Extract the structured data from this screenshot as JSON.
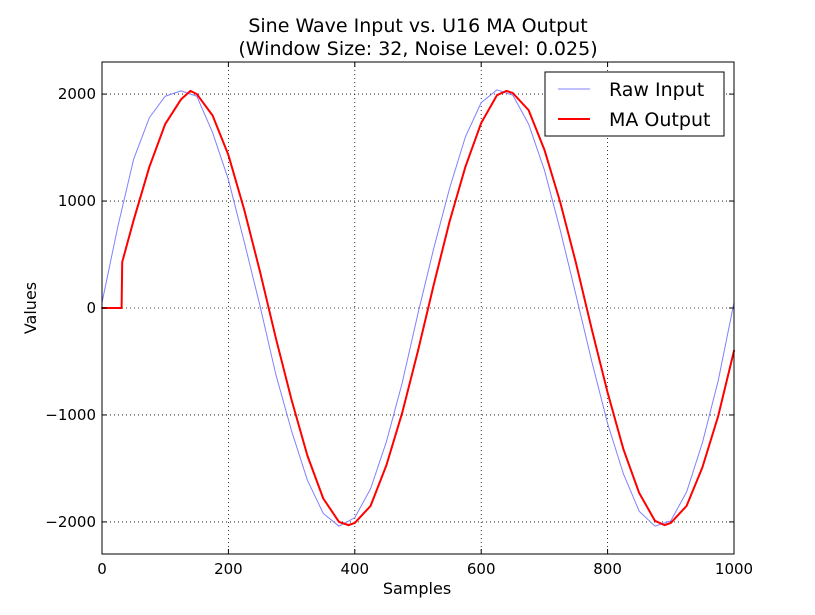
{
  "chart_data": {
    "type": "line",
    "title": "Sine Wave Input vs. U16 MA Output",
    "subtitle": "(Window Size: 32, Noise Level: 0.025)",
    "xlabel": "Samples",
    "ylabel": "Values",
    "xlim": [
      0,
      1000
    ],
    "ylim": [
      -2300,
      2300
    ],
    "xticks": [
      0,
      200,
      400,
      600,
      800,
      1000
    ],
    "xtick_labels": [
      "0",
      "200",
      "400",
      "600",
      "800",
      "1000"
    ],
    "yticks": [
      -2000,
      -1000,
      0,
      1000,
      2000
    ],
    "ytick_labels": [
      "−2000",
      "−1000",
      "0",
      "1000",
      "2000"
    ],
    "grid": true,
    "legend_position": "top-right",
    "series": [
      {
        "name": "Raw Input",
        "color": "#8080ff",
        "x": [
          0,
          25,
          50,
          75,
          100,
          125,
          150,
          175,
          200,
          225,
          250,
          275,
          300,
          325,
          350,
          375,
          400,
          425,
          450,
          475,
          500,
          525,
          550,
          575,
          600,
          625,
          650,
          675,
          700,
          725,
          750,
          775,
          800,
          825,
          850,
          875,
          900,
          925,
          950,
          975,
          1000
        ],
        "y": [
          50,
          760,
          1390,
          1780,
          1980,
          2030,
          1980,
          1640,
          1200,
          620,
          20,
          -620,
          -1150,
          -1610,
          -1920,
          -2040,
          -1960,
          -1690,
          -1250,
          -700,
          -50,
          560,
          1120,
          1600,
          1920,
          2040,
          1990,
          1720,
          1290,
          730,
          120,
          -500,
          -1080,
          -1550,
          -1900,
          -2040,
          -1990,
          -1720,
          -1260,
          -680,
          50
        ]
      },
      {
        "name": "MA Output",
        "color": "#ff0000",
        "x": [
          0,
          31,
          32,
          50,
          75,
          100,
          125,
          140,
          150,
          175,
          200,
          225,
          250,
          275,
          300,
          325,
          350,
          375,
          390,
          400,
          425,
          450,
          475,
          500,
          525,
          550,
          575,
          600,
          625,
          640,
          650,
          675,
          700,
          725,
          750,
          775,
          800,
          825,
          850,
          875,
          890,
          900,
          925,
          950,
          975,
          1000
        ],
        "y": [
          0,
          0,
          430,
          820,
          1320,
          1720,
          1950,
          2030,
          2000,
          1800,
          1430,
          920,
          340,
          -280,
          -860,
          -1380,
          -1780,
          -2000,
          -2030,
          -2010,
          -1850,
          -1470,
          -980,
          -400,
          220,
          810,
          1320,
          1730,
          1990,
          2030,
          2010,
          1850,
          1480,
          990,
          420,
          -200,
          -790,
          -1320,
          -1730,
          -1990,
          -2030,
          -2010,
          -1850,
          -1490,
          -1010,
          -400
        ]
      }
    ]
  }
}
